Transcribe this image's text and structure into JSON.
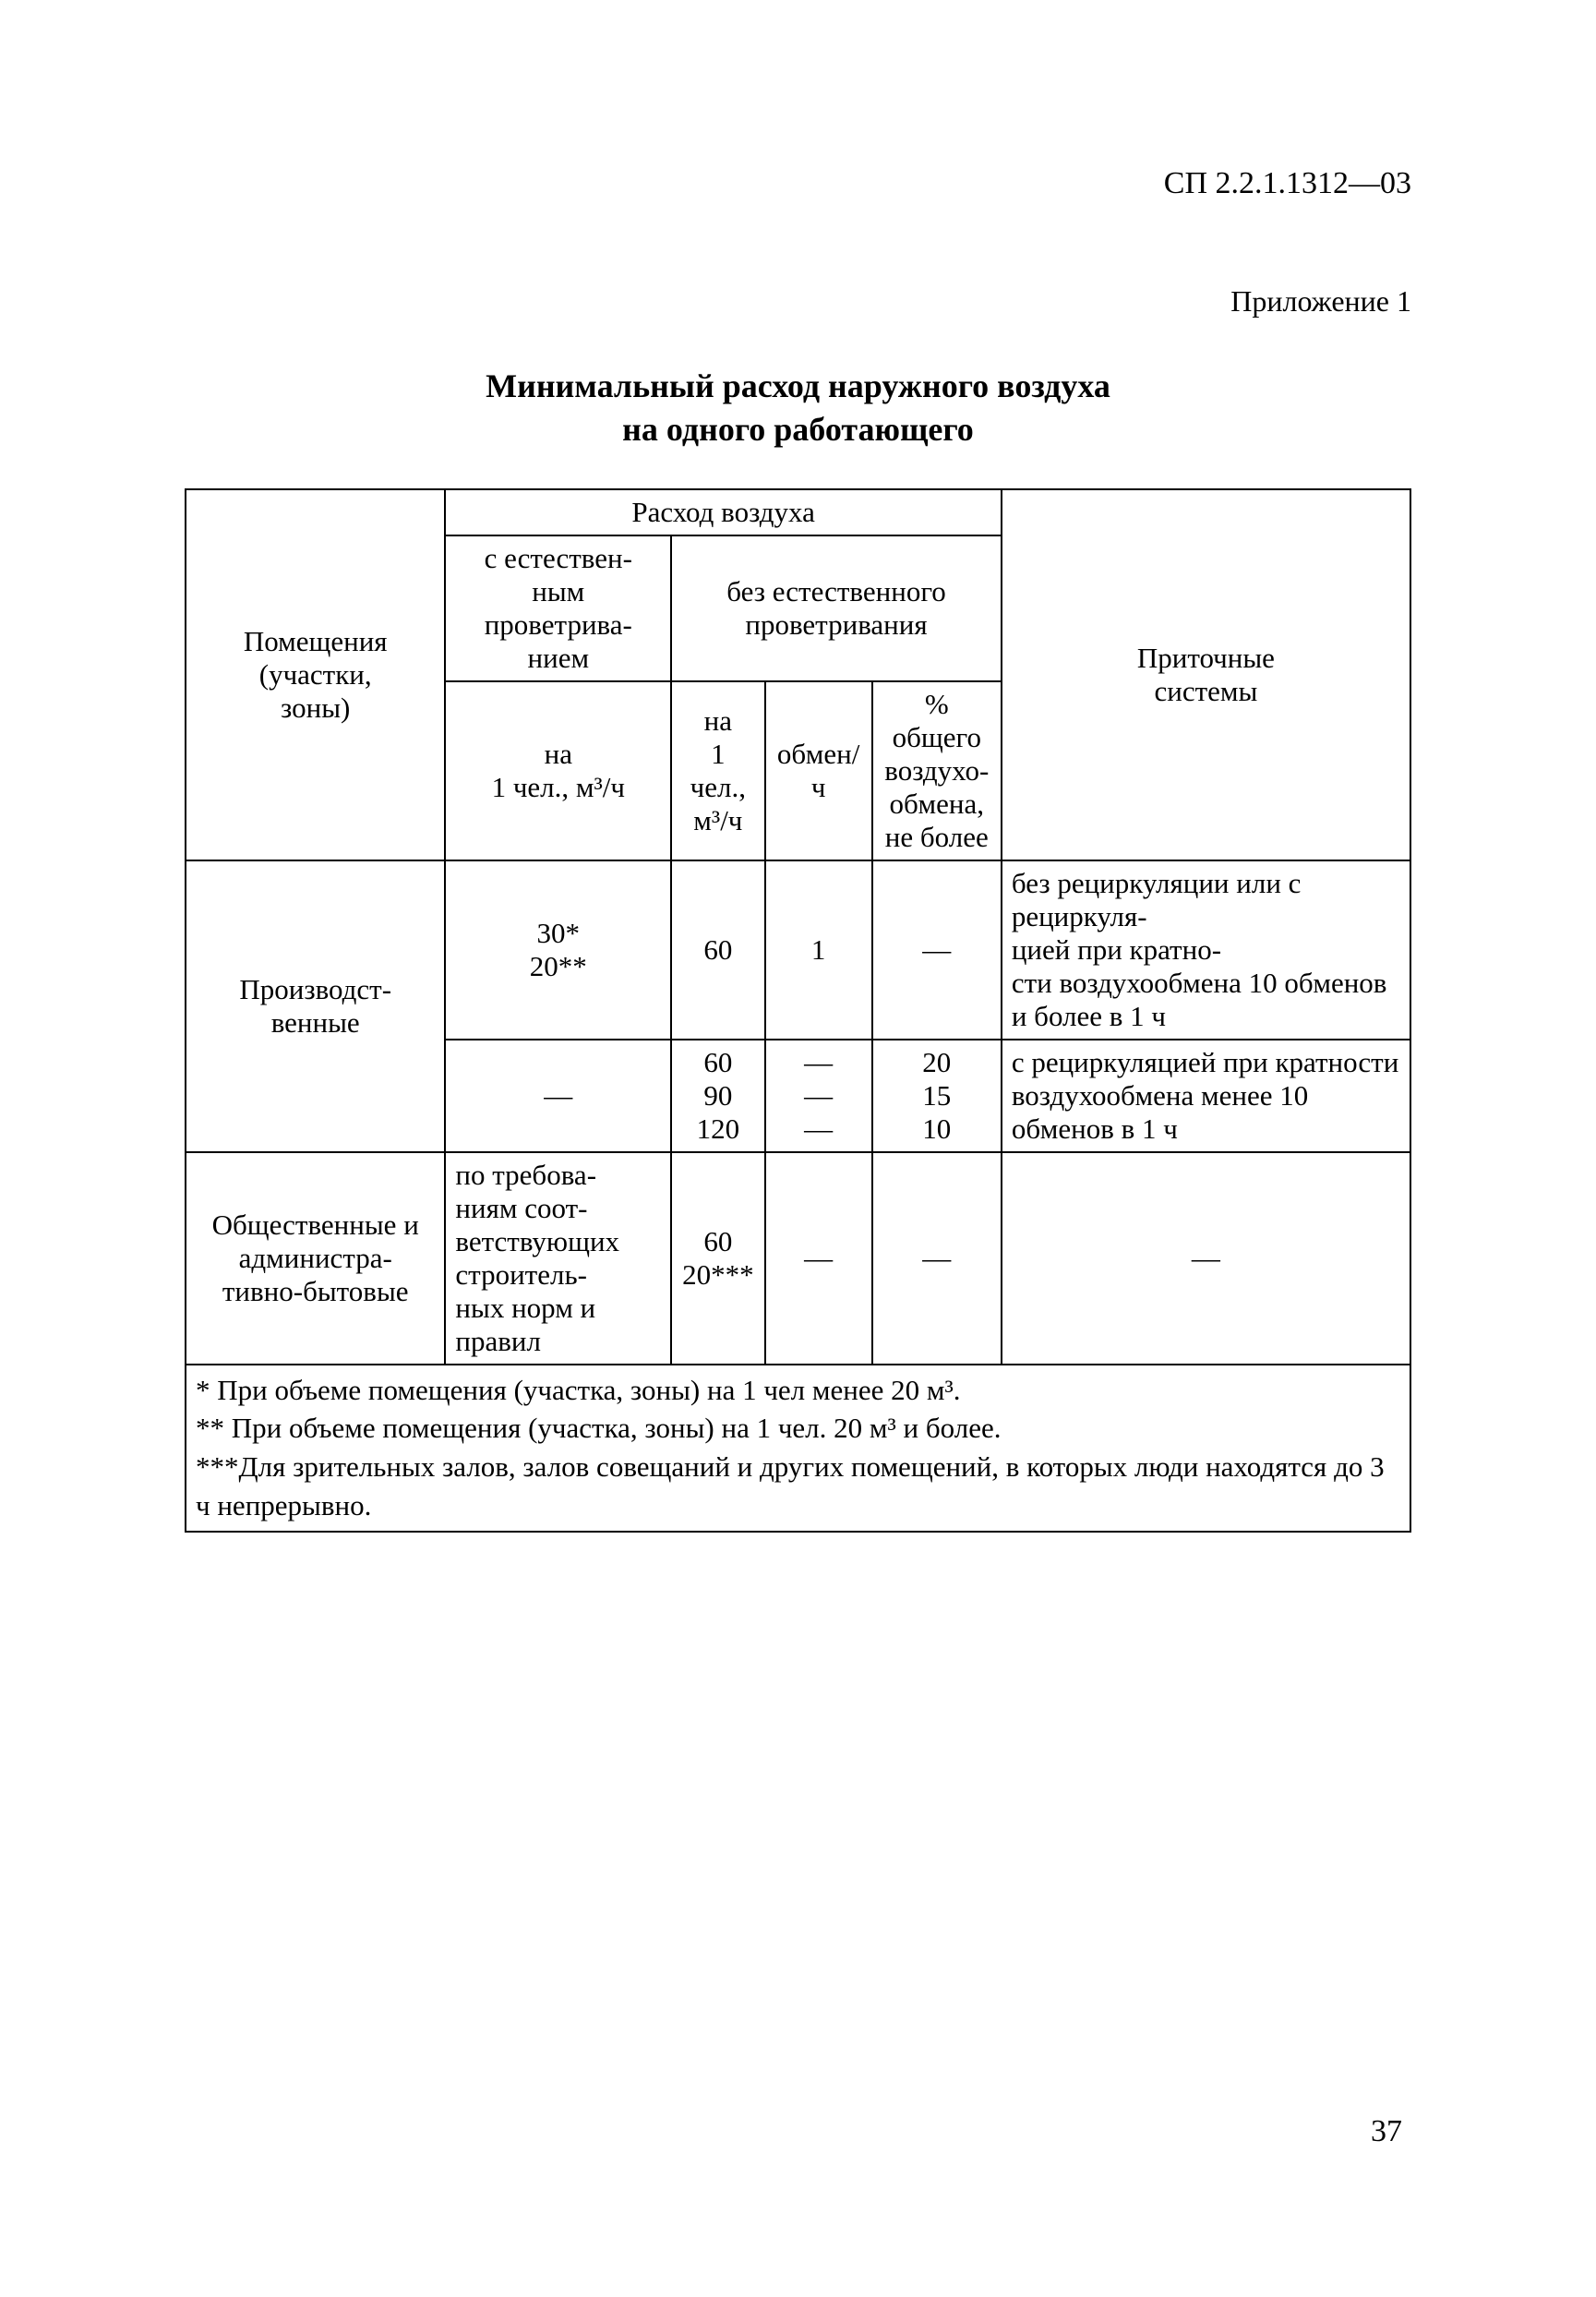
{
  "doc_code": "СП 2.2.1.1312—03",
  "appendix": "Приложение 1",
  "title_line1": "Минимальный расход наружного воздуха",
  "title_line2": "на одного работающего",
  "headers": {
    "rooms": "Помещения\n(участки,\nзоны)",
    "air_flow": "Расход воздуха",
    "with_natural": "с естествен-\nным\nпроветрива-\nнием",
    "without_natural": "без естественного\nпроветривания",
    "supply_systems": "Приточные\nсистемы",
    "per_person_m3h_1": "на\n1 чел., м³/ч",
    "per_person_m3h_2": "на\n1 чел.,\nм³/ч",
    "exchange_per_h": "обмен/ч",
    "percent_total": "% общего\nвоздухо-\nобмена,\nне более"
  },
  "rows": {
    "r1": {
      "rooms": "Производст-\nвенные",
      "c1": "30*\n20**",
      "c2": "60",
      "c3": "1",
      "c4": "—",
      "c5": "без рециркуляции или с рециркуля-\nцией при кратно-\nсти воздухообмена 10 обменов и более в 1 ч"
    },
    "r2": {
      "c1": "—",
      "c2": "60\n90\n120",
      "c3": "—\n—\n—",
      "c4": "20\n15\n10",
      "c5": "с рециркуляцией при кратности воздухообмена менее 10 обменов в 1 ч"
    },
    "r3": {
      "rooms": "Общественные и администра-\nтивно-бытовые",
      "c1": "по требова-\nниям соот-\nветствующих строитель-\nных норм и правил",
      "c2": "60\n20***",
      "c3": "—",
      "c4": "—",
      "c5": "—"
    }
  },
  "footnotes": {
    "f1": "* При объеме помещения (участка, зоны) на 1 чел менее 20 м³.",
    "f2": "** При объеме помещения (участка, зоны) на 1 чел. 20 м³ и более.",
    "f3": "***Для зрительных залов, залов совещаний и других помещений, в которых люди находятся до 3 ч непрерывно."
  },
  "page_number": "37"
}
